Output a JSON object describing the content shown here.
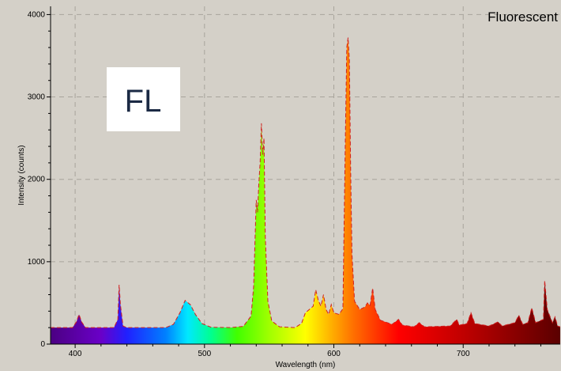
{
  "chart_data": {
    "type": "area",
    "title": "Fluorescent",
    "badge": "FL",
    "xlabel": "Wavelength (nm)",
    "ylabel": "Intensity (counts)",
    "xlim": [
      381,
      775
    ],
    "ylim": [
      0,
      4100
    ],
    "x_ticks": [
      400,
      500,
      600,
      700
    ],
    "y_ticks": [
      0,
      1000,
      2000,
      3000,
      4000
    ],
    "grid": true,
    "series": [
      {
        "values": [
          [
            381,
            200
          ],
          [
            398,
            200
          ],
          [
            401,
            270
          ],
          [
            403,
            360
          ],
          [
            405,
            270
          ],
          [
            408,
            200
          ],
          [
            430,
            200
          ],
          [
            433,
            300
          ],
          [
            434,
            720
          ],
          [
            435,
            480
          ],
          [
            437,
            220
          ],
          [
            440,
            200
          ],
          [
            470,
            200
          ],
          [
            476,
            240
          ],
          [
            481,
            380
          ],
          [
            485,
            530
          ],
          [
            489,
            480
          ],
          [
            493,
            360
          ],
          [
            498,
            250
          ],
          [
            505,
            205
          ],
          [
            520,
            200
          ],
          [
            530,
            215
          ],
          [
            536,
            340
          ],
          [
            538,
            700
          ],
          [
            540,
            1750
          ],
          [
            541,
            1600
          ],
          [
            542,
            1950
          ],
          [
            543,
            2200
          ],
          [
            544,
            2680
          ],
          [
            545,
            2300
          ],
          [
            546,
            2500
          ],
          [
            547,
            1300
          ],
          [
            549,
            520
          ],
          [
            552,
            280
          ],
          [
            558,
            210
          ],
          [
            570,
            200
          ],
          [
            575,
            250
          ],
          [
            578,
            380
          ],
          [
            581,
            420
          ],
          [
            584,
            460
          ],
          [
            586,
            660
          ],
          [
            588,
            530
          ],
          [
            590,
            460
          ],
          [
            592,
            600
          ],
          [
            594,
            420
          ],
          [
            596,
            360
          ],
          [
            598,
            480
          ],
          [
            600,
            380
          ],
          [
            604,
            360
          ],
          [
            607,
            430
          ],
          [
            609,
            2600
          ],
          [
            610,
            3600
          ],
          [
            611,
            3720
          ],
          [
            612,
            3450
          ],
          [
            613,
            2100
          ],
          [
            614,
            1100
          ],
          [
            616,
            520
          ],
          [
            620,
            420
          ],
          [
            624,
            450
          ],
          [
            626,
            500
          ],
          [
            628,
            470
          ],
          [
            630,
            680
          ],
          [
            632,
            420
          ],
          [
            636,
            290
          ],
          [
            645,
            240
          ],
          [
            650,
            300
          ],
          [
            653,
            230
          ],
          [
            662,
            210
          ],
          [
            666,
            260
          ],
          [
            670,
            210
          ],
          [
            690,
            220
          ],
          [
            695,
            300
          ],
          [
            697,
            230
          ],
          [
            703,
            250
          ],
          [
            706,
            380
          ],
          [
            709,
            250
          ],
          [
            720,
            220
          ],
          [
            727,
            270
          ],
          [
            730,
            220
          ],
          [
            740,
            260
          ],
          [
            743,
            350
          ],
          [
            746,
            240
          ],
          [
            750,
            260
          ],
          [
            753,
            440
          ],
          [
            756,
            260
          ],
          [
            762,
            300
          ],
          [
            763,
            770
          ],
          [
            765,
            420
          ],
          [
            769,
            260
          ],
          [
            771,
            330
          ],
          [
            773,
            220
          ],
          [
            775,
            210
          ]
        ]
      }
    ],
    "gradient": [
      {
        "x": 381,
        "color": "#4b0082"
      },
      {
        "x": 420,
        "color": "#6a00c8"
      },
      {
        "x": 440,
        "color": "#2020ff"
      },
      {
        "x": 470,
        "color": "#0080ff"
      },
      {
        "x": 487,
        "color": "#00e8ff"
      },
      {
        "x": 505,
        "color": "#00ff90"
      },
      {
        "x": 525,
        "color": "#40ff00"
      },
      {
        "x": 550,
        "color": "#a0ff00"
      },
      {
        "x": 578,
        "color": "#ffff00"
      },
      {
        "x": 598,
        "color": "#ffb000"
      },
      {
        "x": 615,
        "color": "#ff7000"
      },
      {
        "x": 650,
        "color": "#ff0000"
      },
      {
        "x": 700,
        "color": "#c00000"
      },
      {
        "x": 775,
        "color": "#5a0000"
      }
    ]
  }
}
